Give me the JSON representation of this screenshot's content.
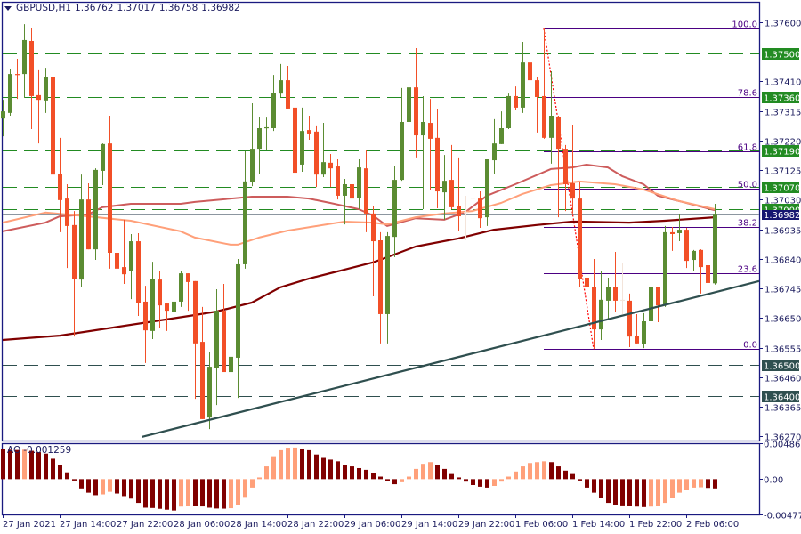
{
  "header": {
    "symbol_timeframe": "GBPUSD,H1",
    "open": "1.36762",
    "high": "1.37017",
    "low": "1.36758",
    "close": "1.36982",
    "menu_icon": "triangle-down-icon"
  },
  "colors": {
    "bull": "#5b8c32",
    "bear": "#f24f27",
    "doji": "#f3e4da",
    "frame": "#1a1a80",
    "axis_text": "#1b1b5e",
    "resistance_line": "#228b22",
    "support_line": "#2f4f4f",
    "fib_line": "#4b0082",
    "fib_swing": "#ff0000",
    "current_price_line": "#8c96a0",
    "current_price_box": "#161670",
    "trendline": "#2f4f4f",
    "ma_slow": "#800000",
    "ma_mid": "#cd5c5c",
    "ma_fast": "#ffa07a",
    "ao_up": "#ffa07a",
    "ao_down": "#800000"
  },
  "price_axis": {
    "ticks": [
      "1.37600",
      "1.37410",
      "1.37315",
      "1.37220",
      "1.37125",
      "1.37030",
      "1.36935",
      "1.36840",
      "1.36745",
      "1.36650",
      "1.36555",
      "1.36460",
      "1.36365",
      "1.36270"
    ]
  },
  "levels": [
    {
      "price": "1.37500",
      "kind": "resistance"
    },
    {
      "price": "1.37360",
      "kind": "resistance"
    },
    {
      "price": "1.37190",
      "kind": "resistance"
    },
    {
      "price": "1.37070",
      "kind": "resistance"
    },
    {
      "price": "1.37000",
      "kind": "resistance"
    },
    {
      "price": "1.36500",
      "kind": "support"
    },
    {
      "price": "1.36400",
      "kind": "support"
    }
  ],
  "current_price": "1.36982",
  "fibonacci": {
    "high": {
      "bar": 76,
      "price": 1.3758
    },
    "low": {
      "bar": 83,
      "price": 1.36551
    },
    "levels": [
      {
        "ratio": 100.0,
        "label": "100.0"
      },
      {
        "ratio": 78.6,
        "label": "78.6"
      },
      {
        "ratio": 61.8,
        "label": "61.8"
      },
      {
        "ratio": 50.0,
        "label": "50.0"
      },
      {
        "ratio": 38.2,
        "label": "38.2"
      },
      {
        "ratio": 23.6,
        "label": "23.6"
      },
      {
        "ratio": 0.0,
        "label": "0.0"
      }
    ]
  },
  "trendline": [
    [
      19.6,
      1.36269
    ],
    [
      106.25,
      1.36769
    ]
  ],
  "time_axis": {
    "labels": [
      "27 Jan 2021",
      "27 Jan 14:00",
      "27 Jan 22:00",
      "28 Jan 06:00",
      "28 Jan 14:00",
      "28 Jan 22:00",
      "29 Jan 06:00",
      "29 Jan 14:00",
      "29 Jan 22:00",
      "1 Feb 06:00",
      "1 Feb 14:00",
      "1 Feb 22:00",
      "2 Feb 06:00"
    ]
  },
  "ao": {
    "label": "AO",
    "value": "-0.001259",
    "axis_ticks": [
      "0.004861",
      "0.00",
      "-0.004776"
    ]
  },
  "chart_data": [
    {
      "type": "candlestick",
      "symbol": "GBPUSD",
      "timeframe": "H1",
      "ylim": [
        1.3627,
        1.376
      ],
      "grid": false,
      "ohlc": [
        [
          1.37291,
          1.37351,
          1.37234,
          1.37314
        ],
        [
          1.37309,
          1.37449,
          1.373,
          1.37434
        ],
        [
          1.37434,
          1.37483,
          1.37354,
          1.37431
        ],
        [
          1.37434,
          1.37594,
          1.37357,
          1.37543
        ],
        [
          1.3754,
          1.3758,
          1.37257,
          1.37363
        ],
        [
          1.37366,
          1.37446,
          1.37211,
          1.37351
        ],
        [
          1.37349,
          1.37454,
          1.37309,
          1.37423
        ],
        [
          1.37423,
          1.37429,
          1.36986,
          1.37111
        ],
        [
          1.37114,
          1.37229,
          1.36926,
          1.37029
        ],
        [
          1.37034,
          1.3708,
          1.36811,
          1.36946
        ],
        [
          1.36949,
          1.36994,
          1.36591,
          1.36777
        ],
        [
          1.36774,
          1.37111,
          1.36751,
          1.37031
        ],
        [
          1.37031,
          1.37083,
          1.36871,
          1.36871
        ],
        [
          1.36871,
          1.37131,
          1.36837,
          1.37126
        ],
        [
          1.37123,
          1.37211,
          1.37077,
          1.37209
        ],
        [
          1.37211,
          1.373,
          1.36809,
          1.3686
        ],
        [
          1.3686,
          1.36957,
          1.36726,
          1.36809
        ],
        [
          1.36814,
          1.36966,
          1.3676,
          1.36791
        ],
        [
          1.368,
          1.3692,
          1.36711,
          1.36897
        ],
        [
          1.36897,
          1.36923,
          1.36657,
          1.367
        ],
        [
          1.36703,
          1.36754,
          1.36506,
          1.36611
        ],
        [
          1.36609,
          1.36831,
          1.36583,
          1.36777
        ],
        [
          1.36774,
          1.36803,
          1.36617,
          1.36691
        ],
        [
          1.36697,
          1.36697,
          1.36609,
          1.36674
        ],
        [
          1.36671,
          1.36703,
          1.36634,
          1.36703
        ],
        [
          1.36703,
          1.36803,
          1.36686,
          1.36794
        ],
        [
          1.36794,
          1.36794,
          1.36674,
          1.36766
        ],
        [
          1.36769,
          1.36769,
          1.36391,
          1.36569
        ],
        [
          1.36574,
          1.36686,
          1.36326,
          1.36326
        ],
        [
          1.36331,
          1.36543,
          1.36294,
          1.36494
        ],
        [
          1.36491,
          1.36743,
          1.36371,
          1.36674
        ],
        [
          1.36674,
          1.3676,
          1.36477,
          1.36477
        ],
        [
          1.36477,
          1.36583,
          1.36383,
          1.36526
        ],
        [
          1.36523,
          1.3684,
          1.36394,
          1.36823
        ],
        [
          1.36823,
          1.37186,
          1.36809,
          1.37089
        ],
        [
          1.37086,
          1.3734,
          1.37074,
          1.37194
        ],
        [
          1.37194,
          1.37297,
          1.37114,
          1.3726
        ],
        [
          1.3726,
          1.37294,
          1.37191,
          1.37263
        ],
        [
          1.3726,
          1.37431,
          1.37251,
          1.37374
        ],
        [
          1.37371,
          1.37466,
          1.3736,
          1.37414
        ],
        [
          1.37414,
          1.3746,
          1.3732,
          1.37323
        ],
        [
          1.37326,
          1.37329,
          1.37117,
          1.37117
        ],
        [
          1.37143,
          1.37326,
          1.3712,
          1.37251
        ],
        [
          1.37254,
          1.373,
          1.37223,
          1.37243
        ],
        [
          1.37249,
          1.37266,
          1.37071,
          1.37111
        ],
        [
          1.37111,
          1.37277,
          1.37103,
          1.37151
        ],
        [
          1.37149,
          1.37177,
          1.37071,
          1.37131
        ],
        [
          1.37137,
          1.3716,
          1.37031,
          1.37043
        ],
        [
          1.37043,
          1.37097,
          1.36951,
          1.3708
        ],
        [
          1.3708,
          1.37083,
          1.36994,
          1.37034
        ],
        [
          1.37037,
          1.3716,
          1.37,
          1.37134
        ],
        [
          1.37131,
          1.37191,
          1.36926,
          1.36986
        ],
        [
          1.36986,
          1.37011,
          1.3672,
          1.36897
        ],
        [
          1.369,
          1.36926,
          1.36569,
          1.36663
        ],
        [
          1.36663,
          1.36926,
          1.36569,
          1.36914
        ],
        [
          1.36911,
          1.37137,
          1.36846,
          1.37094
        ],
        [
          1.37094,
          1.37389,
          1.37091,
          1.3728
        ],
        [
          1.3728,
          1.37494,
          1.37191,
          1.37391
        ],
        [
          1.37391,
          1.37517,
          1.37166,
          1.37237
        ],
        [
          1.37237,
          1.37363,
          1.37,
          1.3728
        ],
        [
          1.37277,
          1.37354,
          1.37063,
          1.37226
        ],
        [
          1.37229,
          1.3732,
          1.37003,
          1.37057
        ],
        [
          1.37054,
          1.37174,
          1.36966,
          1.37091
        ],
        [
          1.37094,
          1.37206,
          1.37,
          1.37006
        ],
        [
          1.37011,
          1.37166,
          1.36929,
          1.36977
        ],
        [
          1.36991,
          1.37043,
          1.369,
          1.36991
        ],
        [
          1.37037,
          1.3708,
          1.36949,
          1.37037
        ],
        [
          1.37034,
          1.37057,
          1.3694,
          1.36971
        ],
        [
          1.36974,
          1.3716,
          1.36946,
          1.3716
        ],
        [
          1.37157,
          1.37289,
          1.37114,
          1.37211
        ],
        [
          1.37209,
          1.37314,
          1.37209,
          1.3726
        ],
        [
          1.3726,
          1.37371,
          1.37257,
          1.37363
        ],
        [
          1.37363,
          1.37394,
          1.37317,
          1.37326
        ],
        [
          1.37326,
          1.37537,
          1.37309,
          1.37471
        ],
        [
          1.37471,
          1.3748,
          1.37391,
          1.37414
        ],
        [
          1.37414,
          1.37423,
          1.37246,
          1.3736
        ],
        [
          1.37363,
          1.3758,
          1.37226,
          1.37229
        ],
        [
          1.37229,
          1.37443,
          1.37146,
          1.373
        ],
        [
          1.37297,
          1.373,
          1.36974,
          1.37194
        ],
        [
          1.37194,
          1.37206,
          1.36994,
          1.3708
        ],
        [
          1.37083,
          1.37271,
          1.36986,
          1.37034
        ],
        [
          1.37034,
          1.37086,
          1.36751,
          1.36777
        ],
        [
          1.3678,
          1.36966,
          1.3668,
          1.36749
        ],
        [
          1.36749,
          1.3684,
          1.36551,
          1.36614
        ],
        [
          1.36614,
          1.36803,
          1.3658,
          1.36709
        ],
        [
          1.36706,
          1.3678,
          1.36649,
          1.36751
        ],
        [
          1.36751,
          1.36863,
          1.36669,
          1.36706
        ],
        [
          1.36709,
          1.36826,
          1.36663,
          1.36709
        ],
        [
          1.36706,
          1.36729,
          1.36557,
          1.36591
        ],
        [
          1.36594,
          1.36663,
          1.36569,
          1.36569
        ],
        [
          1.36566,
          1.36666,
          1.36554,
          1.3664
        ],
        [
          1.3664,
          1.36791,
          1.36629,
          1.36751
        ],
        [
          1.36749,
          1.36749,
          1.36637,
          1.36691
        ],
        [
          1.36691,
          1.36946,
          1.36686,
          1.36926
        ],
        [
          1.36926,
          1.36943,
          1.36866,
          1.3692
        ],
        [
          1.36923,
          1.36983,
          1.36897,
          1.36934
        ],
        [
          1.36934,
          1.3694,
          1.36811,
          1.36834
        ],
        [
          1.36837,
          1.36869,
          1.368,
          1.36866
        ],
        [
          1.36869,
          1.36871,
          1.36729,
          1.36814
        ],
        [
          1.3682,
          1.36931,
          1.36703,
          1.36763
        ],
        [
          1.36762,
          1.37017,
          1.36758,
          1.36982
        ]
      ],
      "moving_averages": [
        {
          "key": "ma_slow",
          "points": [
            [
              0,
              1.3658
            ],
            [
              8,
              1.36594
            ],
            [
              27,
              1.3666
            ],
            [
              30,
              1.36671
            ],
            [
              35,
              1.367
            ],
            [
              39,
              1.36749
            ],
            [
              43,
              1.36777
            ],
            [
              47,
              1.368
            ],
            [
              52,
              1.36829
            ],
            [
              53,
              1.36837
            ],
            [
              58,
              1.3688
            ],
            [
              64,
              1.36906
            ],
            [
              69,
              1.36934
            ],
            [
              75,
              1.36949
            ],
            [
              80,
              1.3696
            ],
            [
              81,
              1.3696
            ],
            [
              88,
              1.36957
            ],
            [
              93,
              1.36963
            ],
            [
              100,
              1.36974
            ]
          ]
        },
        {
          "key": "ma_mid",
          "points": [
            [
              0,
              1.36929
            ],
            [
              6,
              1.36957
            ],
            [
              8,
              1.36977
            ],
            [
              12,
              1.36983
            ],
            [
              14,
              1.37006
            ],
            [
              18,
              1.37017
            ],
            [
              25,
              1.37017
            ],
            [
              27,
              1.37023
            ],
            [
              35,
              1.3704
            ],
            [
              40,
              1.3704
            ],
            [
              43,
              1.37034
            ],
            [
              46,
              1.3702
            ],
            [
              50,
              1.37
            ],
            [
              52,
              1.3698
            ],
            [
              54,
              1.36946
            ],
            [
              58,
              1.36971
            ],
            [
              62,
              1.36966
            ],
            [
              65,
              1.36991
            ],
            [
              68,
              1.37043
            ],
            [
              72,
              1.3708
            ],
            [
              77,
              1.37129
            ],
            [
              80,
              1.37134
            ],
            [
              82,
              1.37143
            ],
            [
              85,
              1.37134
            ],
            [
              87,
              1.37106
            ],
            [
              90,
              1.3708
            ],
            [
              92,
              1.37043
            ],
            [
              95,
              1.37026
            ],
            [
              100,
              1.36997
            ]
          ]
        },
        {
          "key": "ma_fast",
          "points": [
            [
              0,
              1.36957
            ],
            [
              6,
              1.36989
            ],
            [
              12,
              1.36977
            ],
            [
              18,
              1.36963
            ],
            [
              25,
              1.36929
            ],
            [
              27,
              1.36909
            ],
            [
              32,
              1.36886
            ],
            [
              33,
              1.36886
            ],
            [
              36,
              1.36909
            ],
            [
              40,
              1.36931
            ],
            [
              45,
              1.36949
            ],
            [
              48,
              1.3696
            ],
            [
              52,
              1.36957
            ],
            [
              54,
              1.36951
            ],
            [
              58,
              1.36974
            ],
            [
              62,
              1.36986
            ],
            [
              66,
              1.36994
            ],
            [
              70,
              1.3702
            ],
            [
              73,
              1.37049
            ],
            [
              77,
              1.37077
            ],
            [
              81,
              1.37089
            ],
            [
              86,
              1.3708
            ],
            [
              90,
              1.37063
            ],
            [
              95,
              1.37026
            ],
            [
              100,
              1.37
            ]
          ]
        }
      ]
    },
    {
      "type": "bar",
      "name": "AO",
      "ylim": [
        -0.004776,
        0.004861
      ],
      "values": [
        0.00402,
        0.00398,
        0.00394,
        0.00398,
        0.00383,
        0.00364,
        0.00345,
        0.00276,
        0.00195,
        0.00092,
        -0.00019,
        -0.00126,
        -0.00184,
        -0.00218,
        -0.00207,
        -0.00172,
        -0.00195,
        -0.0023,
        -0.00264,
        -0.00322,
        -0.00387,
        -0.00391,
        -0.00402,
        -0.00414,
        -0.00425,
        -0.00372,
        -0.00364,
        -0.00368,
        -0.0037,
        -0.00387,
        -0.00398,
        -0.004,
        -0.00394,
        -0.00345,
        -0.00241,
        -0.00115,
        0.00023,
        0.00172,
        0.0031,
        0.00391,
        0.00425,
        0.00427,
        0.00414,
        0.00391,
        0.00333,
        0.00287,
        0.00264,
        0.00241,
        0.00195,
        0.00172,
        0.00149,
        0.00126,
        0.0008,
        0.00034,
        -0.00031,
        -0.00069,
        -0.00042,
        0.00034,
        0.00138,
        0.00207,
        0.0023,
        0.00195,
        0.00138,
        0.00069,
        0.00023,
        -0.00034,
        -0.0008,
        -0.00103,
        -0.00115,
        -0.00092,
        -0.00034,
        0.00034,
        0.00103,
        0.00172,
        0.00218,
        0.0023,
        0.00241,
        0.0023,
        0.00172,
        0.00115,
        0.00069,
        -0.00019,
        -0.00115,
        -0.00184,
        -0.00253,
        -0.00322,
        -0.00345,
        -0.00356,
        -0.00364,
        -0.00372,
        -0.00379,
        -0.00372,
        -0.00364,
        -0.00322,
        -0.00253,
        -0.00184,
        -0.00149,
        -0.00115,
        -0.00111,
        -0.00119,
        -0.001259
      ]
    }
  ]
}
